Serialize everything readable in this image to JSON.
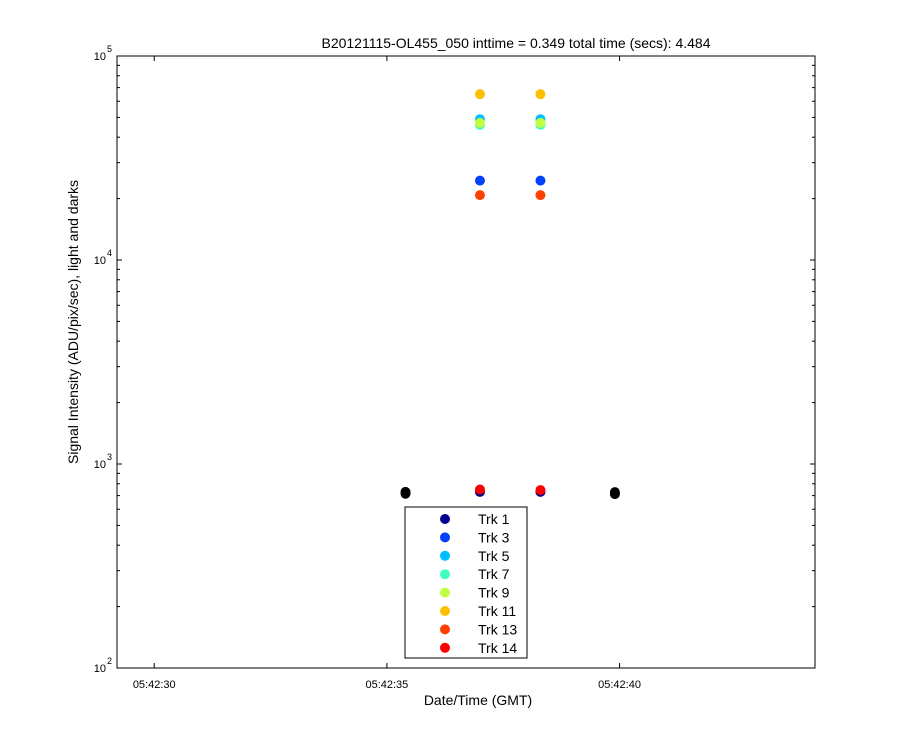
{
  "chart_data": {
    "type": "scatter",
    "title": "B20121115-OL455_050 inttime = 0.349 total time (secs): 4.484",
    "xlabel": "Date/Time (GMT)",
    "ylabel": "Signal Intensity (ADU/pix/sec), light and darks",
    "x_scale": "time",
    "y_scale": "log",
    "xlim": [
      "05:42:29.2",
      "05:42:44.2"
    ],
    "ylim": [
      100,
      100000
    ],
    "x_ticks": [
      "05:42:30",
      "05:42:35",
      "05:42:40"
    ],
    "y_ticks": [
      {
        "value": 100,
        "base": "10",
        "exp": "2"
      },
      {
        "value": 1000,
        "base": "10",
        "exp": "3"
      },
      {
        "value": 10000,
        "base": "10",
        "exp": "4"
      },
      {
        "value": 100000,
        "base": "10",
        "exp": "5"
      }
    ],
    "grid": false,
    "legend_position": "bottom-center",
    "series": [
      {
        "name": "Trk 1",
        "color": "#00008f",
        "x": [
          "05:42:37.0",
          "05:42:38.3"
        ],
        "y": [
          730,
          730
        ]
      },
      {
        "name": "Trk 3",
        "color": "#0040ff",
        "x": [
          "05:42:37.0",
          "05:42:38.3"
        ],
        "y": [
          24500,
          24500
        ]
      },
      {
        "name": "Trk 5",
        "color": "#00bfff",
        "x": [
          "05:42:37.0",
          "05:42:38.3"
        ],
        "y": [
          49000,
          49000
        ]
      },
      {
        "name": "Trk 7",
        "color": "#40ffbf",
        "x": [
          "05:42:37.0",
          "05:42:38.3"
        ],
        "y": [
          46000,
          46000
        ]
      },
      {
        "name": "Trk 9",
        "color": "#bfff40",
        "x": [
          "05:42:37.0",
          "05:42:38.3"
        ],
        "y": [
          47000,
          47000
        ]
      },
      {
        "name": "Trk 11",
        "color": "#ffbf00",
        "x": [
          "05:42:37.0",
          "05:42:38.3"
        ],
        "y": [
          65000,
          65000
        ]
      },
      {
        "name": "Trk 13",
        "color": "#ff4000",
        "x": [
          "05:42:37.0",
          "05:42:38.3"
        ],
        "y": [
          20800,
          20800
        ]
      },
      {
        "name": "Trk 14",
        "color": "#ff0000",
        "x": [
          "05:42:37.0",
          "05:42:38.3"
        ],
        "y": [
          750,
          745
        ]
      }
    ],
    "darks": {
      "color": "#000000",
      "x": [
        "05:42:35.4",
        "05:42:35.4",
        "05:42:39.9",
        "05:42:39.9"
      ],
      "y": [
        715,
        730,
        712,
        728
      ]
    }
  }
}
